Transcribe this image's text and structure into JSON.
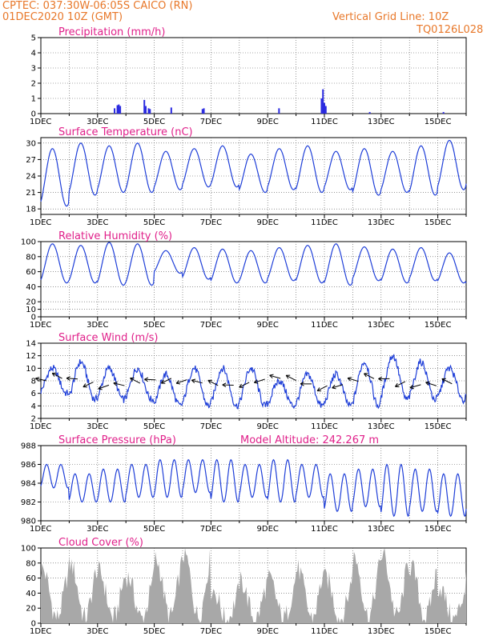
{
  "header": {
    "line1": "CPTEC:   037:30W-06:05S   CAICO (RN)",
    "line2": "01DEC2020 10Z (GMT)",
    "grid_note": "Vertical Grid Line: 10Z",
    "code": "TQ0126L028"
  },
  "colors": {
    "header": "#e8782a",
    "title": "#e0208a",
    "line": "#1f3fd8",
    "bar": "#2a2ae0",
    "cloud": "#a8a8a8",
    "arrow": "#000000"
  },
  "x_axis": {
    "tick_labels": [
      "1DEC",
      "3DEC",
      "5DEC",
      "7DEC",
      "9DEC",
      "11DEC",
      "13DEC",
      "15DEC"
    ],
    "tick_days": [
      0,
      2,
      4,
      6,
      8,
      10,
      12,
      14
    ],
    "range_days": [
      0,
      15
    ]
  },
  "chart_data": [
    {
      "type": "bar",
      "title": "Precipitation (mm/h)",
      "ylim": [
        0,
        5
      ],
      "yticks": [
        "0",
        "1",
        "2",
        "3",
        "4",
        "5"
      ],
      "bars": [
        {
          "day": 2.6,
          "value": 0.35
        },
        {
          "day": 2.7,
          "value": 0.55
        },
        {
          "day": 2.75,
          "value": 0.6
        },
        {
          "day": 2.8,
          "value": 0.5
        },
        {
          "day": 3.65,
          "value": 0.9
        },
        {
          "day": 3.7,
          "value": 0.5
        },
        {
          "day": 3.8,
          "value": 0.35
        },
        {
          "day": 3.85,
          "value": 0.3
        },
        {
          "day": 4.6,
          "value": 0.4
        },
        {
          "day": 5.7,
          "value": 0.3
        },
        {
          "day": 5.75,
          "value": 0.35
        },
        {
          "day": 8.4,
          "value": 0.35
        },
        {
          "day": 9.9,
          "value": 1.0
        },
        {
          "day": 9.95,
          "value": 1.6
        },
        {
          "day": 10.0,
          "value": 0.7
        },
        {
          "day": 10.05,
          "value": 0.5
        },
        {
          "day": 11.6,
          "value": 0.1
        },
        {
          "day": 14.2,
          "value": 0.1
        }
      ]
    },
    {
      "type": "line",
      "title": "Surface Temperature (nC)",
      "ylim": [
        17,
        31
      ],
      "yticks": [
        "18",
        "21",
        "24",
        "27",
        "30"
      ],
      "diurnal": {
        "period_days": 1,
        "mins": [
          18.5,
          20.5,
          21.0,
          21.0,
          21.5,
          22.0,
          22.0,
          21.0,
          21.5,
          21.0,
          21.5,
          20.5,
          21.0,
          20.5,
          21.5,
          22.0
        ],
        "maxs": [
          29.0,
          30.0,
          29.5,
          30.0,
          28.5,
          29.0,
          29.5,
          28.0,
          29.0,
          29.5,
          28.5,
          29.0,
          28.5,
          29.5,
          30.5,
          29.5
        ]
      }
    },
    {
      "type": "line",
      "title": "Relative Humidity (%)",
      "ylim": [
        0,
        100
      ],
      "yticks": [
        "0",
        "10",
        "20",
        "40",
        "60",
        "80",
        "100"
      ],
      "diurnal": {
        "period_days": 1,
        "mins": [
          45,
          45,
          42,
          42,
          58,
          50,
          45,
          45,
          48,
          45,
          42,
          48,
          45,
          48,
          45,
          42
        ],
        "maxs": [
          97,
          95,
          99,
          97,
          88,
          92,
          90,
          88,
          92,
          95,
          97,
          93,
          90,
          92,
          85,
          80
        ]
      }
    },
    {
      "type": "line",
      "title": "Surface Wind (m/s)",
      "ylim": [
        2,
        14
      ],
      "yticks": [
        "2",
        "4",
        "6",
        "8",
        "10",
        "12",
        "14"
      ],
      "diurnal": {
        "period_days": 1,
        "mins": [
          6,
          5,
          5,
          5,
          4,
          4,
          4,
          4,
          4,
          4,
          4,
          4,
          5,
          5,
          5,
          5
        ],
        "maxs": [
          10,
          11,
          10,
          10,
          9,
          10,
          10,
          10,
          8,
          9,
          9,
          11,
          12,
          11,
          10,
          10
        ]
      }
    },
    {
      "type": "line",
      "title": "Surface Pressure (hPa)",
      "annotation": "Model Altitude: 242.267 m",
      "ylim": [
        980,
        988
      ],
      "yticks": [
        "980",
        "982",
        "984",
        "986",
        "988"
      ],
      "semidiurnal": {
        "period_days": 0.5,
        "mins": [
          983.5,
          982,
          982,
          982.5,
          982.5,
          983,
          982,
          982.5,
          982,
          982.5,
          981,
          981.5,
          980.5,
          981,
          980.5,
          981
        ],
        "maxs": [
          986,
          985,
          985.5,
          986,
          986.5,
          986.5,
          986.5,
          986,
          986.5,
          986,
          985,
          985.5,
          986,
          985.5,
          985,
          984.5
        ]
      }
    },
    {
      "type": "area",
      "title": "Cloud Cover (%)",
      "ylim": [
        0,
        100
      ],
      "yticks": [
        "0",
        "20",
        "40",
        "60",
        "80",
        "100"
      ],
      "daily_levels": [
        72,
        78,
        68,
        62,
        85,
        92,
        45,
        55,
        58,
        72,
        60,
        88,
        92,
        75,
        48,
        78
      ]
    }
  ]
}
